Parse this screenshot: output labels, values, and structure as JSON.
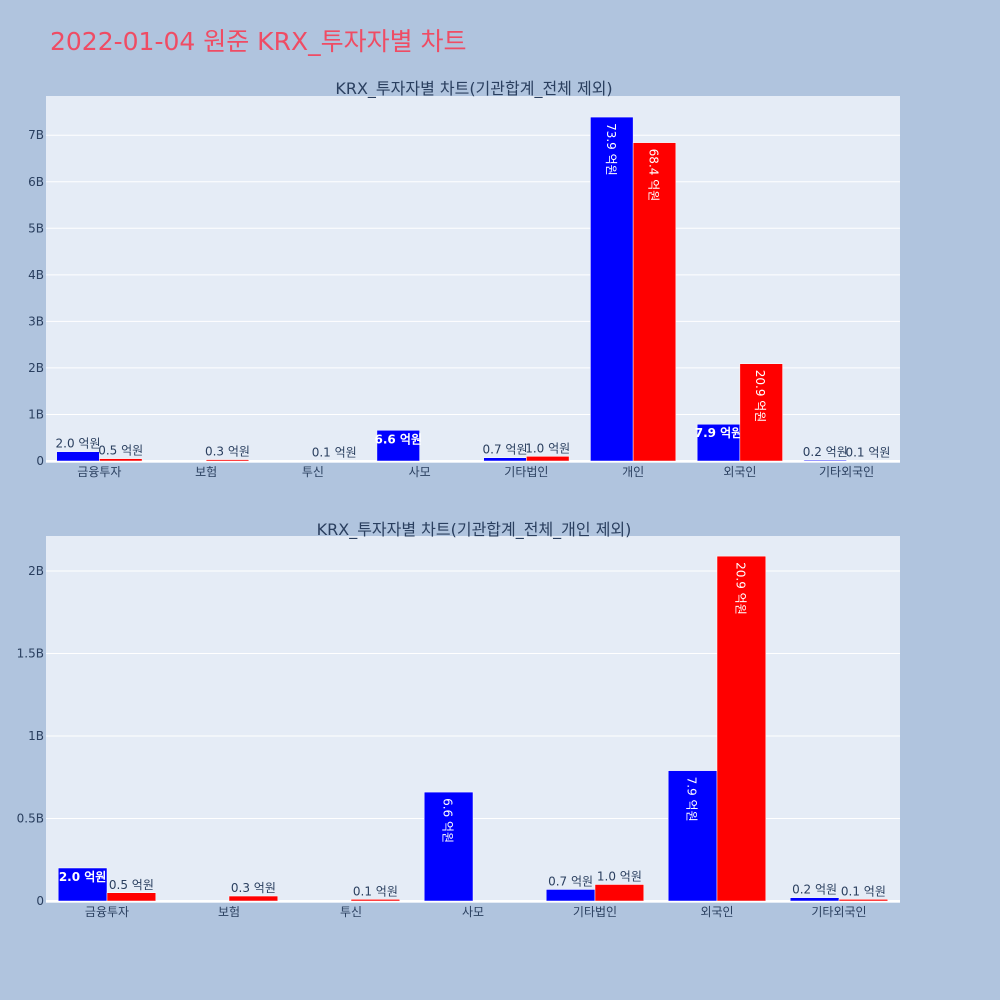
{
  "page": {
    "title": "2022-01-04 원준 KRX_투자자별 차트"
  },
  "colors": {
    "series_a": "#0000ff",
    "series_b": "#ff0000",
    "plot_bg": "#e5ecf6",
    "paper_bg": "#b0c4de",
    "text": "#2a3f5f"
  },
  "chart_data": [
    {
      "type": "bar",
      "title": "KRX_투자자별 차트(기관합계_전체 제외)",
      "categories": [
        "금융투자",
        "보험",
        "투신",
        "사모",
        "기타법인",
        "개인",
        "외국인",
        "기타외국인"
      ],
      "series": [
        {
          "values": [
            0.2,
            0.0,
            0.0,
            0.66,
            0.07,
            7.39,
            0.79,
            0.02
          ],
          "labels": [
            "2.0 억원",
            "",
            "",
            "6.6 억원",
            "0.7 억원",
            "73.9 억원",
            "7.9 억원",
            "0.2 억원"
          ]
        },
        {
          "values": [
            0.05,
            0.03,
            0.01,
            0.0,
            0.1,
            6.84,
            2.09,
            0.01
          ],
          "labels": [
            "0.5 억원",
            "0.3 억원",
            "0.1 억원",
            "",
            "1.0 억원",
            "68.4 억원",
            "20.9 억원",
            "0.1 억원"
          ]
        }
      ],
      "ylim": [
        0,
        7.8
      ],
      "yticks": [
        0,
        1,
        2,
        3,
        4,
        5,
        6,
        7
      ],
      "ytick_labels": [
        "0",
        "1B",
        "2B",
        "3B",
        "4B",
        "5B",
        "6B",
        "7B"
      ],
      "grid": true,
      "legend": "none"
    },
    {
      "type": "bar",
      "title": "KRX_투자자별 차트(기관합계_전체_개인 제외)",
      "categories": [
        "금융투자",
        "보험",
        "투신",
        "사모",
        "기타법인",
        "외국인",
        "기타외국인"
      ],
      "series": [
        {
          "values": [
            0.2,
            0.0,
            0.0,
            0.66,
            0.07,
            0.79,
            0.02
          ],
          "labels": [
            "2.0 억원",
            "",
            "",
            "6.6 억원",
            "0.7 억원",
            "7.9 억원",
            "0.2 억원"
          ]
        },
        {
          "values": [
            0.05,
            0.03,
            0.01,
            0.0,
            0.1,
            2.09,
            0.01
          ],
          "labels": [
            "0.5 억원",
            "0.3 억원",
            "0.1 억원",
            "",
            "1.0 억원",
            "20.9 억원",
            "0.1 억원"
          ]
        }
      ],
      "ylim": [
        0,
        2.2
      ],
      "yticks": [
        0,
        0.5,
        1,
        1.5,
        2
      ],
      "ytick_labels": [
        "0",
        "0.5B",
        "1B",
        "1.5B",
        "2B"
      ],
      "grid": true,
      "legend": "none"
    }
  ]
}
